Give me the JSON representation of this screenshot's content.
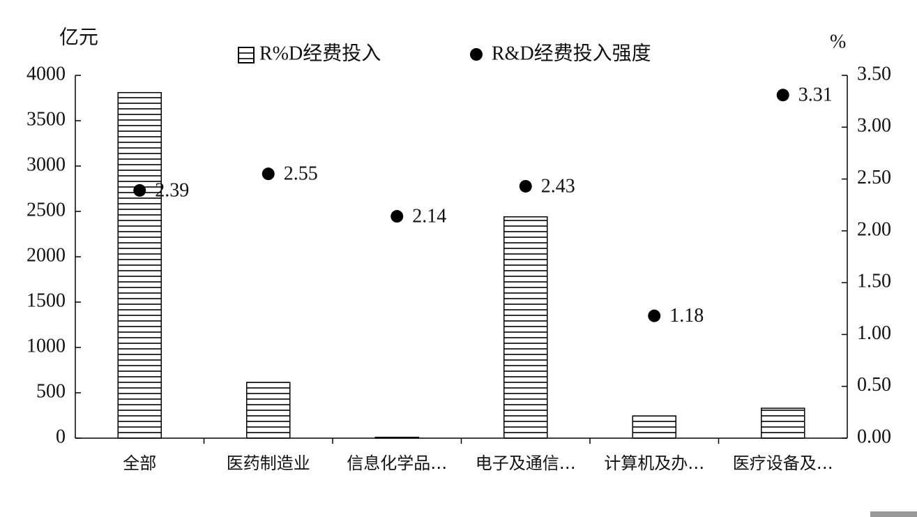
{
  "chart_data": {
    "type": "bar-dot",
    "y_unit": "亿元",
    "y2_unit": "%",
    "categories": [
      "全部",
      "医药制造业",
      "信息化学品…",
      "电子及通信…",
      "计算机及办…",
      "医疗设备及…"
    ],
    "series": [
      {
        "name": "R%D经费投入",
        "color": "#000000",
        "values": [
          3810,
          615,
          10,
          2440,
          245,
          330
        ]
      },
      {
        "name": "R&D经费投入强度",
        "color": "#000000",
        "axis": "y2",
        "values": [
          2.39,
          2.55,
          2.14,
          2.43,
          1.18,
          3.31
        ]
      }
    ],
    "ylim": [
      0,
      4000
    ],
    "yticks": [
      0,
      500,
      1000,
      1500,
      2000,
      2500,
      3000,
      3500,
      4000
    ],
    "y2lim": [
      0,
      3.5
    ],
    "y2ticks": [
      {
        "value": 0,
        "label": "0.00"
      },
      {
        "value": 0.5,
        "label": "0.50"
      },
      {
        "value": 1,
        "label": "1.00"
      },
      {
        "value": 1.5,
        "label": "1.50"
      },
      {
        "value": 2,
        "label": "2.00"
      },
      {
        "value": 2.5,
        "label": "2.50"
      },
      {
        "value": 3,
        "label": "3.00"
      },
      {
        "value": 3.5,
        "label": "3.50"
      }
    ]
  }
}
